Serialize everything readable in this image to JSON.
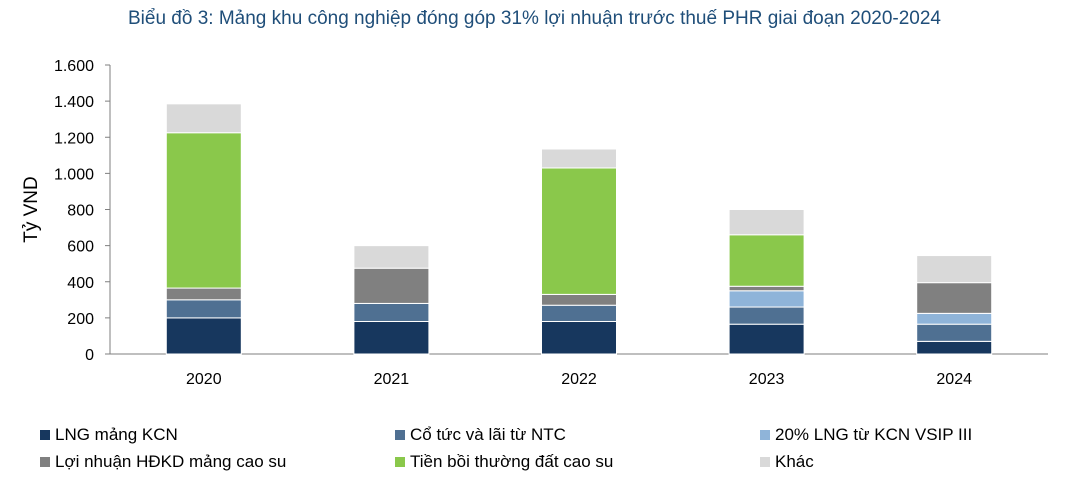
{
  "chart_data": {
    "type": "bar",
    "stacked": true,
    "title": "Biểu đồ 3: Mảng khu công nghiệp đóng góp 31% lợi nhuận trước thuế PHR giai đoạn 2020-2024",
    "ylabel": "Tỷ VND",
    "xlabel": "",
    "ylim": [
      0,
      1600
    ],
    "yticks": [
      0,
      200,
      400,
      600,
      800,
      1000,
      1200,
      1400,
      1600
    ],
    "ytick_labels": [
      "0",
      "200",
      "400",
      "600",
      "800",
      "1.000",
      "1.200",
      "1.400",
      "1.600"
    ],
    "categories": [
      "2020",
      "2021",
      "2022",
      "2023",
      "2024"
    ],
    "series": [
      {
        "name": "LNG mảng KCN",
        "color": "#17375e",
        "values": [
          200,
          180,
          180,
          165,
          70
        ]
      },
      {
        "name": "Cổ tức và lãi từ NTC",
        "color": "#4f7092",
        "values": [
          100,
          100,
          90,
          95,
          95
        ]
      },
      {
        "name": "20% LNG từ KCN VSIP III",
        "color": "#8fb4d9",
        "values": [
          0,
          0,
          0,
          90,
          60
        ]
      },
      {
        "name": "Lợi nhuận HĐKD mảng cao su",
        "color": "#808080",
        "values": [
          65,
          195,
          60,
          25,
          170
        ]
      },
      {
        "name": "Tiền bồi thường đất cao su",
        "color": "#8ac84b",
        "values": [
          860,
          0,
          700,
          285,
          0
        ]
      },
      {
        "name": "Khác",
        "color": "#d9d9d9",
        "values": [
          160,
          125,
          105,
          140,
          150
        ]
      }
    ],
    "legend_position": "bottom",
    "grid": false
  }
}
